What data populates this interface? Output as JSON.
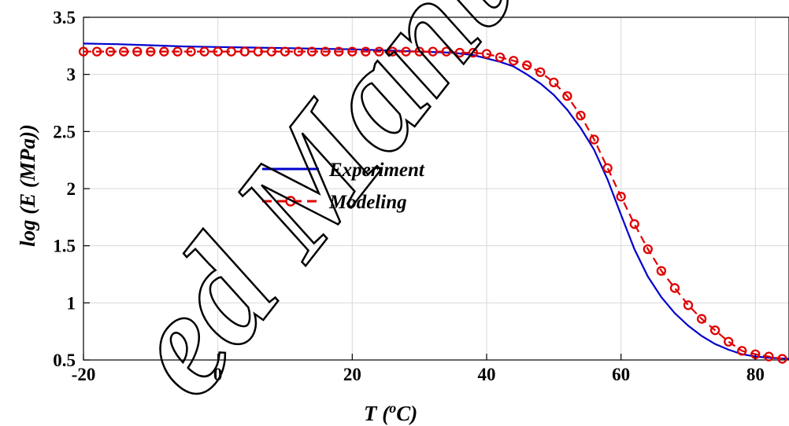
{
  "chart_data": {
    "type": "line",
    "xlabel_main": "T (",
    "xlabel_sup": "o",
    "xlabel_end": "C)",
    "ylabel": "log (E (MPa))",
    "xlim": [
      -20,
      85
    ],
    "ylim": [
      0.5,
      3.5
    ],
    "xticks": [
      -20,
      0,
      20,
      40,
      60,
      80
    ],
    "yticks": [
      0.5,
      1,
      1.5,
      2,
      2.5,
      3,
      3.5
    ],
    "xtick_labels": [
      "-20",
      "0",
      "20",
      "40",
      "60",
      "80"
    ],
    "ytick_labels": [
      "0.5",
      "1",
      "1.5",
      "2",
      "2.5",
      "3",
      "3.5"
    ],
    "grid": true,
    "legend_position": "center-left",
    "watermark_text": "ed Manu",
    "series": [
      {
        "name": "Experiment",
        "color": "#0000cc",
        "style": "solid",
        "marker": "none",
        "x": [
          -20,
          -15,
          -10,
          -5,
          0,
          5,
          10,
          15,
          20,
          25,
          30,
          35,
          38,
          40,
          42,
          44,
          46,
          48,
          50,
          52,
          54,
          56,
          58,
          60,
          62,
          64,
          66,
          68,
          70,
          72,
          74,
          76,
          78,
          80,
          82,
          85
        ],
        "y": [
          3.27,
          3.265,
          3.255,
          3.245,
          3.24,
          3.235,
          3.23,
          3.225,
          3.22,
          3.21,
          3.2,
          3.19,
          3.17,
          3.14,
          3.11,
          3.07,
          3.0,
          2.92,
          2.82,
          2.69,
          2.53,
          2.34,
          2.08,
          1.77,
          1.47,
          1.23,
          1.05,
          0.91,
          0.8,
          0.71,
          0.64,
          0.59,
          0.55,
          0.53,
          0.52,
          0.51
        ]
      },
      {
        "name": "Modeling",
        "color": "#e00000",
        "style": "dashed",
        "marker": "circle",
        "x": [
          -20,
          -18,
          -16,
          -14,
          -12,
          -10,
          -8,
          -6,
          -4,
          -2,
          0,
          2,
          4,
          6,
          8,
          10,
          12,
          14,
          16,
          18,
          20,
          22,
          24,
          26,
          28,
          30,
          32,
          34,
          36,
          38,
          40,
          42,
          44,
          46,
          48,
          50,
          52,
          54,
          56,
          58,
          60,
          62,
          64,
          66,
          68,
          70,
          72,
          74,
          76,
          78,
          80,
          82,
          84
        ],
        "y": [
          3.2,
          3.2,
          3.2,
          3.2,
          3.2,
          3.2,
          3.2,
          3.2,
          3.2,
          3.2,
          3.2,
          3.2,
          3.2,
          3.2,
          3.2,
          3.2,
          3.2,
          3.2,
          3.2,
          3.2,
          3.2,
          3.2,
          3.2,
          3.2,
          3.2,
          3.2,
          3.2,
          3.2,
          3.19,
          3.19,
          3.18,
          3.15,
          3.12,
          3.08,
          3.02,
          2.93,
          2.81,
          2.64,
          2.43,
          2.18,
          1.93,
          1.69,
          1.47,
          1.28,
          1.13,
          0.98,
          0.86,
          0.76,
          0.66,
          0.58,
          0.55,
          0.53,
          0.51
        ]
      }
    ]
  }
}
